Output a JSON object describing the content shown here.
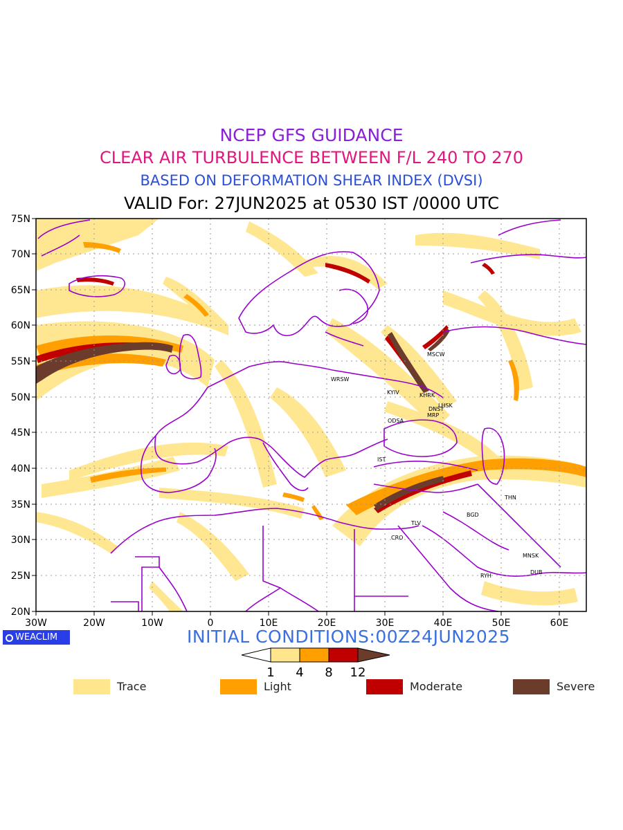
{
  "titles": {
    "line1": "NCEP GFS GUIDANCE",
    "line2": "CLEAR AIR TURBULENCE BETWEEN F/L 240 TO 270",
    "line3": "BASED ON DEFORMATION SHEAR INDEX (DVSI)",
    "line4": "VALID For: 27JUN2025 at 0530 IST /0000 UTC"
  },
  "colors": {
    "line1": "#8a1fd6",
    "line2": "#e0157f",
    "line3": "#2a4fd8",
    "trace": "#ffe68c",
    "light": "#ffa000",
    "moderate": "#c00000",
    "severe": "#6b3b2c",
    "border": "#9900cc",
    "grid": "#999999"
  },
  "map": {
    "lat_labels": [
      "75N",
      "70N",
      "65N",
      "60N",
      "55N",
      "50N",
      "45N",
      "40N",
      "35N",
      "30N",
      "25N",
      "20N"
    ],
    "lon_labels": [
      "30W",
      "20W",
      "10W",
      "0",
      "10E",
      "20E",
      "30E",
      "40E",
      "50E",
      "60E"
    ],
    "stations": [
      {
        "name": "MSCW"
      },
      {
        "name": "WRSW"
      },
      {
        "name": "KYIV"
      },
      {
        "name": "KHRK"
      },
      {
        "name": "LHSK"
      },
      {
        "name": "DNST"
      },
      {
        "name": "MRP"
      },
      {
        "name": "ODSA"
      },
      {
        "name": "IST"
      },
      {
        "name": "THN"
      },
      {
        "name": "BGD"
      },
      {
        "name": "TLV"
      },
      {
        "name": "CRO"
      },
      {
        "name": "MNSK"
      },
      {
        "name": "DUB"
      },
      {
        "name": "RYH"
      }
    ]
  },
  "badge": {
    "text": "WEACLIM",
    "icon": "circle-logo-icon"
  },
  "initial_conditions": "INITIAL CONDITIONS:00Z24JUN2025",
  "colorbar": {
    "ticks": [
      "1",
      "4",
      "8",
      "12"
    ]
  },
  "legend": [
    {
      "label": "Trace",
      "color": "#ffe68c"
    },
    {
      "label": "Light",
      "color": "#ffa000"
    },
    {
      "label": "Moderate",
      "color": "#c00000"
    },
    {
      "label": "Severe",
      "color": "#6b3b2c"
    }
  ]
}
